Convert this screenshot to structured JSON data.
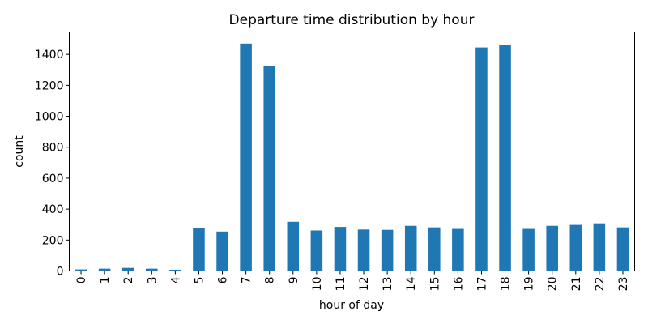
{
  "chart_data": {
    "type": "bar",
    "title": "Departure time distribution by hour",
    "xlabel": "hour of day",
    "ylabel": "count",
    "categories": [
      "0",
      "1",
      "2",
      "3",
      "4",
      "5",
      "6",
      "7",
      "8",
      "9",
      "10",
      "11",
      "12",
      "13",
      "14",
      "15",
      "16",
      "17",
      "18",
      "19",
      "20",
      "21",
      "22",
      "23"
    ],
    "values": [
      10,
      15,
      20,
      15,
      8,
      278,
      255,
      1470,
      1325,
      318,
      262,
      285,
      268,
      266,
      292,
      282,
      272,
      1445,
      1460,
      272,
      292,
      298,
      308,
      282
    ],
    "ylim": [
      0,
      1545
    ],
    "yticks": [
      0,
      200,
      400,
      600,
      800,
      1000,
      1200,
      1400
    ],
    "grid": false,
    "legend": "none",
    "bar_color": "#1f77b4"
  }
}
